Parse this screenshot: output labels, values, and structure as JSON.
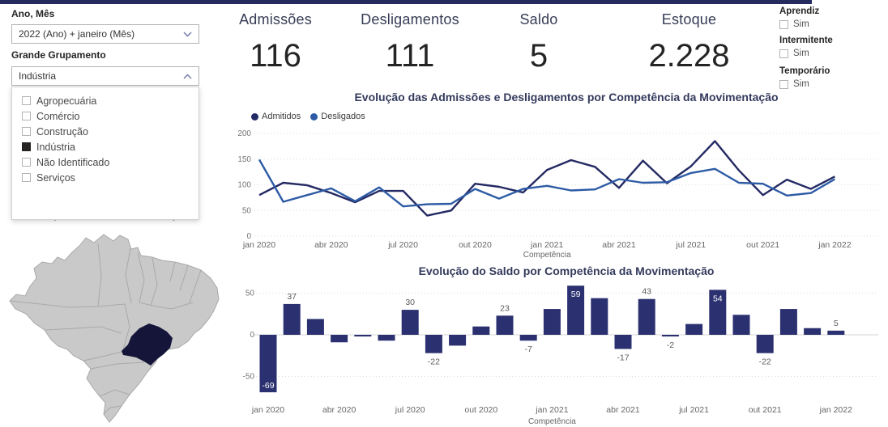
{
  "accent_color": "#262b5f",
  "sidebar": {
    "year_month": {
      "label": "Ano, Mês",
      "value": "2022 (Ano) + janeiro (Mês)"
    },
    "grouping": {
      "label": "Grande Grupamento",
      "value": "Indústria",
      "options": [
        {
          "label": "Agropecuária",
          "checked": false
        },
        {
          "label": "Comércio",
          "checked": false
        },
        {
          "label": "Construção",
          "checked": false
        },
        {
          "label": "Indústria",
          "checked": true
        },
        {
          "label": "Não Identificado",
          "checked": false
        },
        {
          "label": "Serviços",
          "checked": false
        }
      ]
    },
    "map": {
      "title": "Saldo por Unidade da Federação",
      "highlighted_state": "Minas Gerais",
      "highlight_color": "#141539",
      "state_color": "#c9c9c9",
      "border_color": "#a9a9a9"
    }
  },
  "kpis": [
    {
      "label": "Admissões",
      "value": "116"
    },
    {
      "label": "Desligamentos",
      "value": "111"
    },
    {
      "label": "Saldo",
      "value": "5"
    },
    {
      "label": "Estoque",
      "value": "2.228"
    }
  ],
  "filters": [
    {
      "label": "Aprendiz",
      "option": "Sim",
      "checked": false
    },
    {
      "label": "Intermitente",
      "option": "Sim",
      "checked": false
    },
    {
      "label": "Temporário",
      "option": "Sim",
      "checked": false
    }
  ],
  "chart_data": [
    {
      "type": "line",
      "title": "Evolução das Admissões e Desligamentos por Competência da Movimentação",
      "xlabel": "Competência",
      "ylabel": "",
      "ylim": [
        0,
        200
      ],
      "yticks": [
        0,
        50,
        100,
        150,
        200
      ],
      "grid": "dotted-horizontal",
      "legend_position": "top-left",
      "x": [
        "jan 2020",
        "fev 2020",
        "mar 2020",
        "abr 2020",
        "mai 2020",
        "jun 2020",
        "jul 2020",
        "ago 2020",
        "set 2020",
        "out 2020",
        "nov 2020",
        "dez 2020",
        "jan 2021",
        "fev 2021",
        "mar 2021",
        "abr 2021",
        "mai 2021",
        "jun 2021",
        "jul 2021",
        "ago 2021",
        "set 2021",
        "out 2021",
        "nov 2021",
        "dez 2021",
        "jan 2022"
      ],
      "xticks_shown": [
        "jan 2020",
        "abr 2020",
        "jul 2020",
        "out 2020",
        "jan 2021",
        "abr 2021",
        "jul 2021",
        "out 2021",
        "jan 2022"
      ],
      "series": [
        {
          "name": "Admitidos",
          "color": "#242a63",
          "values": [
            80,
            104,
            99,
            84,
            66,
            88,
            88,
            40,
            50,
            102,
            96,
            85,
            129,
            148,
            135,
            94,
            147,
            103,
            136,
            185,
            128,
            80,
            110,
            92,
            116
          ]
        },
        {
          "name": "Desligados",
          "color": "#2d5ba5",
          "values": [
            149,
            67,
            80,
            93,
            68,
            95,
            58,
            62,
            63,
            92,
            73,
            92,
            98,
            89,
            91,
            111,
            104,
            105,
            123,
            131,
            104,
            102,
            79,
            84,
            111
          ]
        }
      ]
    },
    {
      "type": "bar",
      "title": "Evolução do Saldo por Competência da Movimentação",
      "xlabel": "Competência",
      "ylabel": "",
      "ylim": [
        -75,
        60
      ],
      "yticks": [
        -50,
        0,
        50
      ],
      "grid": "dotted-horizontal",
      "bar_color": "#2b3170",
      "categories": [
        "jan 2020",
        "fev 2020",
        "mar 2020",
        "abr 2020",
        "mai 2020",
        "jun 2020",
        "jul 2020",
        "ago 2020",
        "set 2020",
        "out 2020",
        "nov 2020",
        "dez 2020",
        "jan 2021",
        "fev 2021",
        "mar 2021",
        "abr 2021",
        "mai 2021",
        "jun 2021",
        "jul 2021",
        "ago 2021",
        "set 2021",
        "out 2021",
        "nov 2021",
        "dez 2021",
        "jan 2022"
      ],
      "xticks_shown": [
        "jan 2020",
        "abr 2020",
        "jul 2020",
        "out 2020",
        "jan 2021",
        "abr 2021",
        "jul 2021",
        "out 2021",
        "jan 2022"
      ],
      "values": [
        -69,
        37,
        19,
        -9,
        -2,
        -7,
        30,
        -22,
        -13,
        10,
        23,
        -7,
        31,
        59,
        44,
        -17,
        43,
        -2,
        13,
        54,
        24,
        -22,
        31,
        8,
        5
      ],
      "data_labels": {
        "0": "-69",
        "1": "37",
        "6": "30",
        "7": "-22",
        "10": "23",
        "11": "-7",
        "13": "59",
        "15": "-17",
        "16": "43",
        "17": "-2",
        "19": "54",
        "21": "-22",
        "24": "5"
      },
      "inside_label_indices": [
        0,
        13,
        19
      ]
    }
  ]
}
